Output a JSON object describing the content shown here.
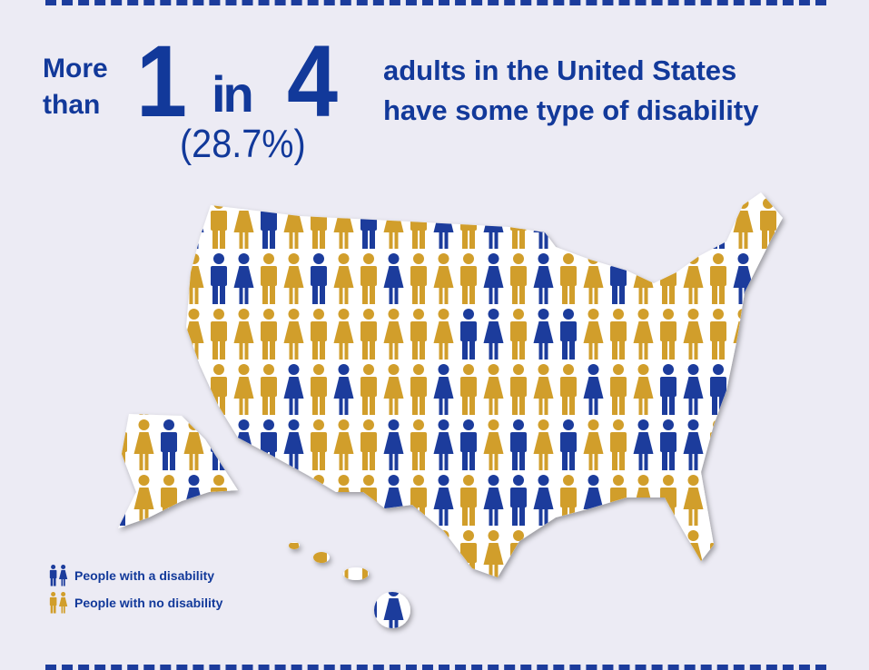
{
  "headline": {
    "prefix_line1": "More",
    "prefix_line2": "than",
    "ratio_numerator": "1",
    "ratio_word": "in",
    "ratio_denominator": "4",
    "percent": "(28.7%)",
    "line1": "adults in the United States",
    "line2": "have some type of disability"
  },
  "legend": {
    "with_disability": "People with a disability",
    "no_disability": "People with no disability"
  },
  "disability_share_percent": 28.7,
  "colors": {
    "background": "#ECEBF4",
    "with_disability": "#1C3C9C",
    "no_disability": "#D19E2B",
    "text": "#12399A"
  }
}
